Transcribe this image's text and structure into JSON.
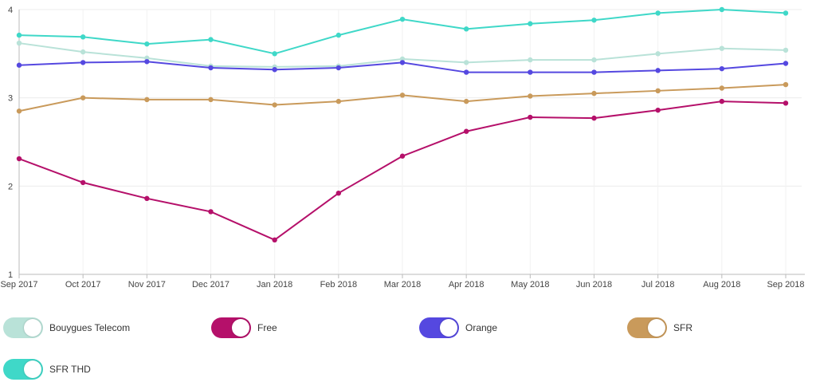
{
  "chart_data": {
    "type": "line",
    "title": "",
    "xlabel": "",
    "ylabel": "",
    "ylim": [
      1,
      4
    ],
    "yticks": [
      1,
      2,
      3,
      4
    ],
    "grid": true,
    "legend_position": "bottom",
    "categories": [
      "Sep 2017",
      "Oct 2017",
      "Nov 2017",
      "Dec 2017",
      "Jan 2018",
      "Feb 2018",
      "Mar 2018",
      "Apr 2018",
      "May 2018",
      "Jun 2018",
      "Jul 2018",
      "Aug 2018",
      "Sep 2018"
    ],
    "series": [
      {
        "name": "Bouygues Telecom",
        "color": "#b9e2d8",
        "values": [
          3.62,
          3.52,
          3.45,
          3.36,
          3.35,
          3.36,
          3.44,
          3.4,
          3.43,
          3.43,
          3.5,
          3.56,
          3.54
        ]
      },
      {
        "name": "Free",
        "color": "#b5106a",
        "values": [
          2.31,
          2.04,
          1.86,
          1.71,
          1.39,
          1.92,
          2.34,
          2.62,
          2.78,
          2.77,
          2.86,
          2.96,
          2.94
        ]
      },
      {
        "name": "Orange",
        "color": "#5548e0",
        "values": [
          3.37,
          3.4,
          3.41,
          3.34,
          3.32,
          3.34,
          3.4,
          3.29,
          3.29,
          3.29,
          3.31,
          3.33,
          3.39
        ]
      },
      {
        "name": "SFR",
        "color": "#c99a5b",
        "values": [
          2.85,
          3.0,
          2.98,
          2.98,
          2.92,
          2.96,
          3.03,
          2.96,
          3.02,
          3.05,
          3.08,
          3.11,
          3.15
        ]
      },
      {
        "name": "SFR THD",
        "color": "#3fd8c8",
        "values": [
          3.71,
          3.69,
          3.61,
          3.66,
          3.5,
          3.71,
          3.89,
          3.78,
          3.84,
          3.88,
          3.96,
          4.0,
          3.96
        ]
      }
    ]
  },
  "legend": {
    "items": [
      {
        "label": "Bouygues Telecom",
        "color": "#b9e2d8"
      },
      {
        "label": "Free",
        "color": "#b5106a"
      },
      {
        "label": "Orange",
        "color": "#5548e0"
      },
      {
        "label": "SFR",
        "color": "#c99a5b"
      },
      {
        "label": "SFR THD",
        "color": "#3fd8c8"
      }
    ]
  }
}
